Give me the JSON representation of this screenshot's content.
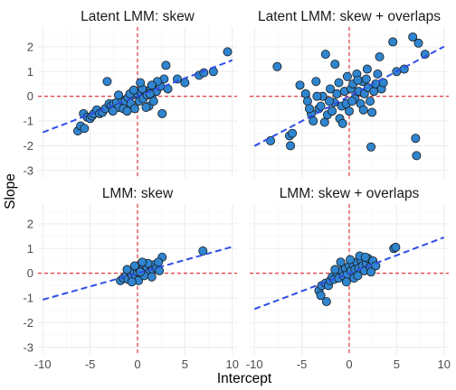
{
  "colors": {
    "point_fill": "#2f85cf",
    "point_stroke": "#1a1a1a",
    "ref_line": "#e3242b",
    "fit_line": "#2e4fe6",
    "grid_major": "#ebebeb",
    "grid_minor": "#f5f5f5"
  },
  "chart_data": {
    "type": "scatter",
    "xlabel": "Intercept",
    "ylabel": "Slope",
    "xlim": [
      -10.5,
      10.5
    ],
    "ylim": [
      -3.3,
      2.8
    ],
    "x_ticks": [
      -10,
      -5,
      0,
      5,
      10
    ],
    "y_ticks": [
      -3,
      -2,
      -1,
      0,
      1,
      2
    ],
    "reference_lines": {
      "x": 0,
      "y": 0
    },
    "grid": true,
    "panels": [
      {
        "title": "Latent LMM: skew",
        "fit": {
          "slope": 0.146,
          "intercept": 0.0
        },
        "points": [
          [
            -6.3,
            -1.4
          ],
          [
            -6.0,
            -1.2
          ],
          [
            -5.6,
            -1.3
          ],
          [
            -5.7,
            -0.7
          ],
          [
            -5.3,
            -0.85
          ],
          [
            -5.0,
            -0.9
          ],
          [
            -4.8,
            -0.8
          ],
          [
            -4.6,
            -0.7
          ],
          [
            -4.3,
            -0.55
          ],
          [
            -4.0,
            -0.7
          ],
          [
            -3.7,
            -0.65
          ],
          [
            -3.4,
            -0.5
          ],
          [
            -3.0,
            -0.3
          ],
          [
            -2.8,
            -0.4
          ],
          [
            -2.5,
            -0.3
          ],
          [
            -2.2,
            -0.25
          ],
          [
            -2.0,
            -0.45
          ],
          [
            -1.6,
            -0.15
          ],
          [
            -1.3,
            -0.2
          ],
          [
            -1.0,
            -0.05
          ],
          [
            -0.7,
            -0.3
          ],
          [
            -0.5,
            0.05
          ],
          [
            -0.3,
            -0.5
          ],
          [
            0.0,
            0.1
          ],
          [
            0.2,
            -0.2
          ],
          [
            0.4,
            0.15
          ],
          [
            0.6,
            -0.1
          ],
          [
            0.8,
            0.2
          ],
          [
            1.0,
            0.05
          ],
          [
            1.2,
            -0.4
          ],
          [
            1.4,
            0.3
          ],
          [
            1.6,
            0.1
          ],
          [
            1.8,
            0.35
          ],
          [
            2.0,
            0.2
          ],
          [
            2.2,
            0.5
          ],
          [
            2.4,
            0.4
          ],
          [
            2.6,
            -0.7
          ],
          [
            2.8,
            0.7
          ],
          [
            3.0,
            1.25
          ],
          [
            3.2,
            0.3
          ],
          [
            4.2,
            0.7
          ],
          [
            5.0,
            0.55
          ],
          [
            6.5,
            0.85
          ],
          [
            7.0,
            0.95
          ],
          [
            8.0,
            1.0
          ],
          [
            9.5,
            1.8
          ],
          [
            -3.2,
            0.6
          ],
          [
            -2.0,
            0.05
          ],
          [
            -1.5,
            -0.5
          ],
          [
            -0.8,
            0.1
          ],
          [
            0.5,
            0.3
          ],
          [
            1.3,
            0.1
          ],
          [
            2.1,
            0.6
          ],
          [
            -1.1,
            -0.6
          ],
          [
            0.9,
            -0.45
          ],
          [
            -0.4,
            0.25
          ],
          [
            1.7,
            -0.2
          ],
          [
            0.3,
            0.55
          ],
          [
            -2.6,
            -0.6
          ],
          [
            1.5,
            0.45
          ]
        ]
      },
      {
        "title": "Latent LMM: skew + overlaps",
        "fit": {
          "slope": 0.201,
          "intercept": 0.0
        },
        "points": [
          [
            -7.6,
            1.2
          ],
          [
            -8.3,
            -1.8
          ],
          [
            -6.3,
            -1.6
          ],
          [
            -6.2,
            -2.0
          ],
          [
            -6.0,
            -1.5
          ],
          [
            -5.2,
            0.45
          ],
          [
            -4.6,
            0.1
          ],
          [
            -4.4,
            -0.2
          ],
          [
            -4.0,
            -0.7
          ],
          [
            -3.8,
            -1.0
          ],
          [
            -3.5,
            0.6
          ],
          [
            -3.2,
            -0.5
          ],
          [
            -3.0,
            -0.4
          ],
          [
            -2.8,
            0.0
          ],
          [
            -2.6,
            -1.05
          ],
          [
            -2.3,
            -0.75
          ],
          [
            -2.0,
            0.3
          ],
          [
            -1.8,
            -0.6
          ],
          [
            -1.6,
            -0.25
          ],
          [
            -1.3,
            0.1
          ],
          [
            -1.0,
            -0.9
          ],
          [
            -0.8,
            -0.4
          ],
          [
            -0.5,
            0.2
          ],
          [
            -0.3,
            -0.3
          ],
          [
            0.0,
            -0.6
          ],
          [
            0.2,
            0.3
          ],
          [
            0.4,
            0.5
          ],
          [
            0.6,
            -0.1
          ],
          [
            0.8,
            0.9
          ],
          [
            1.0,
            0.2
          ],
          [
            1.2,
            -0.3
          ],
          [
            1.4,
            0.6
          ],
          [
            1.6,
            0.1
          ],
          [
            1.8,
            0.7
          ],
          [
            2.0,
            0.35
          ],
          [
            2.2,
            -0.2
          ],
          [
            2.4,
            -0.65
          ],
          [
            2.6,
            0.2
          ],
          [
            2.8,
            0.5
          ],
          [
            3.0,
            0.9
          ],
          [
            3.4,
            0.3
          ],
          [
            3.6,
            0.55
          ],
          [
            4.6,
            2.2
          ],
          [
            5.0,
            1.0
          ],
          [
            5.8,
            1.1
          ],
          [
            6.7,
            2.4
          ],
          [
            7.1,
            -2.4
          ],
          [
            7.3,
            2.15
          ],
          [
            7.0,
            -1.7
          ],
          [
            8.0,
            1.7
          ],
          [
            -2.5,
            1.7
          ],
          [
            -1.5,
            1.3
          ],
          [
            -3.4,
            0.0
          ],
          [
            -0.7,
            -1.1
          ],
          [
            0.9,
            0.65
          ],
          [
            1.5,
            -0.55
          ],
          [
            -1.1,
            0.55
          ],
          [
            2.3,
            -2.05
          ],
          [
            -4.2,
            -0.5
          ],
          [
            0.3,
            -0.2
          ],
          [
            1.9,
            1.1
          ],
          [
            -2.1,
            -0.2
          ],
          [
            3.2,
            1.6
          ],
          [
            -0.2,
            0.8
          ]
        ]
      },
      {
        "title": "LMM: skew",
        "fit": {
          "slope": 0.107,
          "intercept": 0.0
        },
        "points": [
          [
            -1.8,
            -0.3
          ],
          [
            -1.5,
            -0.2
          ],
          [
            -1.2,
            -0.1
          ],
          [
            -1.0,
            -0.25
          ],
          [
            -0.8,
            0.05
          ],
          [
            -0.6,
            -0.1
          ],
          [
            -0.4,
            0.1
          ],
          [
            -0.2,
            -0.15
          ],
          [
            0.0,
            0.05
          ],
          [
            0.2,
            0.15
          ],
          [
            0.4,
            -0.05
          ],
          [
            0.6,
            0.2
          ],
          [
            0.8,
            0.1
          ],
          [
            1.0,
            0.25
          ],
          [
            1.2,
            0.0
          ],
          [
            1.4,
            0.3
          ],
          [
            1.6,
            0.15
          ],
          [
            1.8,
            0.35
          ],
          [
            2.0,
            0.2
          ],
          [
            2.3,
            0.1
          ],
          [
            2.6,
            0.65
          ],
          [
            6.9,
            0.9
          ],
          [
            -0.3,
            0.3
          ],
          [
            0.1,
            -0.3
          ],
          [
            0.7,
            -0.1
          ],
          [
            1.1,
            0.4
          ],
          [
            -1.1,
            0.15
          ],
          [
            0.5,
            0.45
          ],
          [
            1.5,
            -0.15
          ],
          [
            -0.6,
            -0.35
          ],
          [
            2.2,
            0.45
          ],
          [
            0.3,
            0.05
          ]
        ]
      },
      {
        "title": "LMM: skew + overlaps",
        "fit": {
          "slope": 0.145,
          "intercept": 0.0
        },
        "points": [
          [
            -3.2,
            -0.7
          ],
          [
            -3.0,
            -0.9
          ],
          [
            -2.9,
            -0.5
          ],
          [
            -2.5,
            -0.4
          ],
          [
            -2.2,
            -0.5
          ],
          [
            -2.0,
            -0.3
          ],
          [
            -1.8,
            -0.15
          ],
          [
            -1.6,
            -0.25
          ],
          [
            -1.3,
            0.0
          ],
          [
            -1.1,
            -0.2
          ],
          [
            -0.8,
            0.1
          ],
          [
            -0.6,
            -0.1
          ],
          [
            -0.4,
            0.2
          ],
          [
            -0.2,
            -0.05
          ],
          [
            0.0,
            0.3
          ],
          [
            0.2,
            0.1
          ],
          [
            0.4,
            0.35
          ],
          [
            0.6,
            0.15
          ],
          [
            0.8,
            0.45
          ],
          [
            1.0,
            0.2
          ],
          [
            1.2,
            0.55
          ],
          [
            1.4,
            0.3
          ],
          [
            1.6,
            0.1
          ],
          [
            1.8,
            0.4
          ],
          [
            2.0,
            0.6
          ],
          [
            2.2,
            0.25
          ],
          [
            2.5,
            0.5
          ],
          [
            2.8,
            0.3
          ],
          [
            4.7,
            1.0
          ],
          [
            4.9,
            1.05
          ],
          [
            -0.9,
            0.45
          ],
          [
            0.5,
            -0.2
          ],
          [
            1.1,
            0.7
          ],
          [
            -0.3,
            -0.35
          ],
          [
            1.7,
            0.65
          ],
          [
            -1.5,
            0.15
          ],
          [
            0.9,
            -0.1
          ],
          [
            2.3,
            0.05
          ],
          [
            -2.4,
            -1.15
          ],
          [
            0.1,
            0.55
          ]
        ]
      }
    ]
  }
}
